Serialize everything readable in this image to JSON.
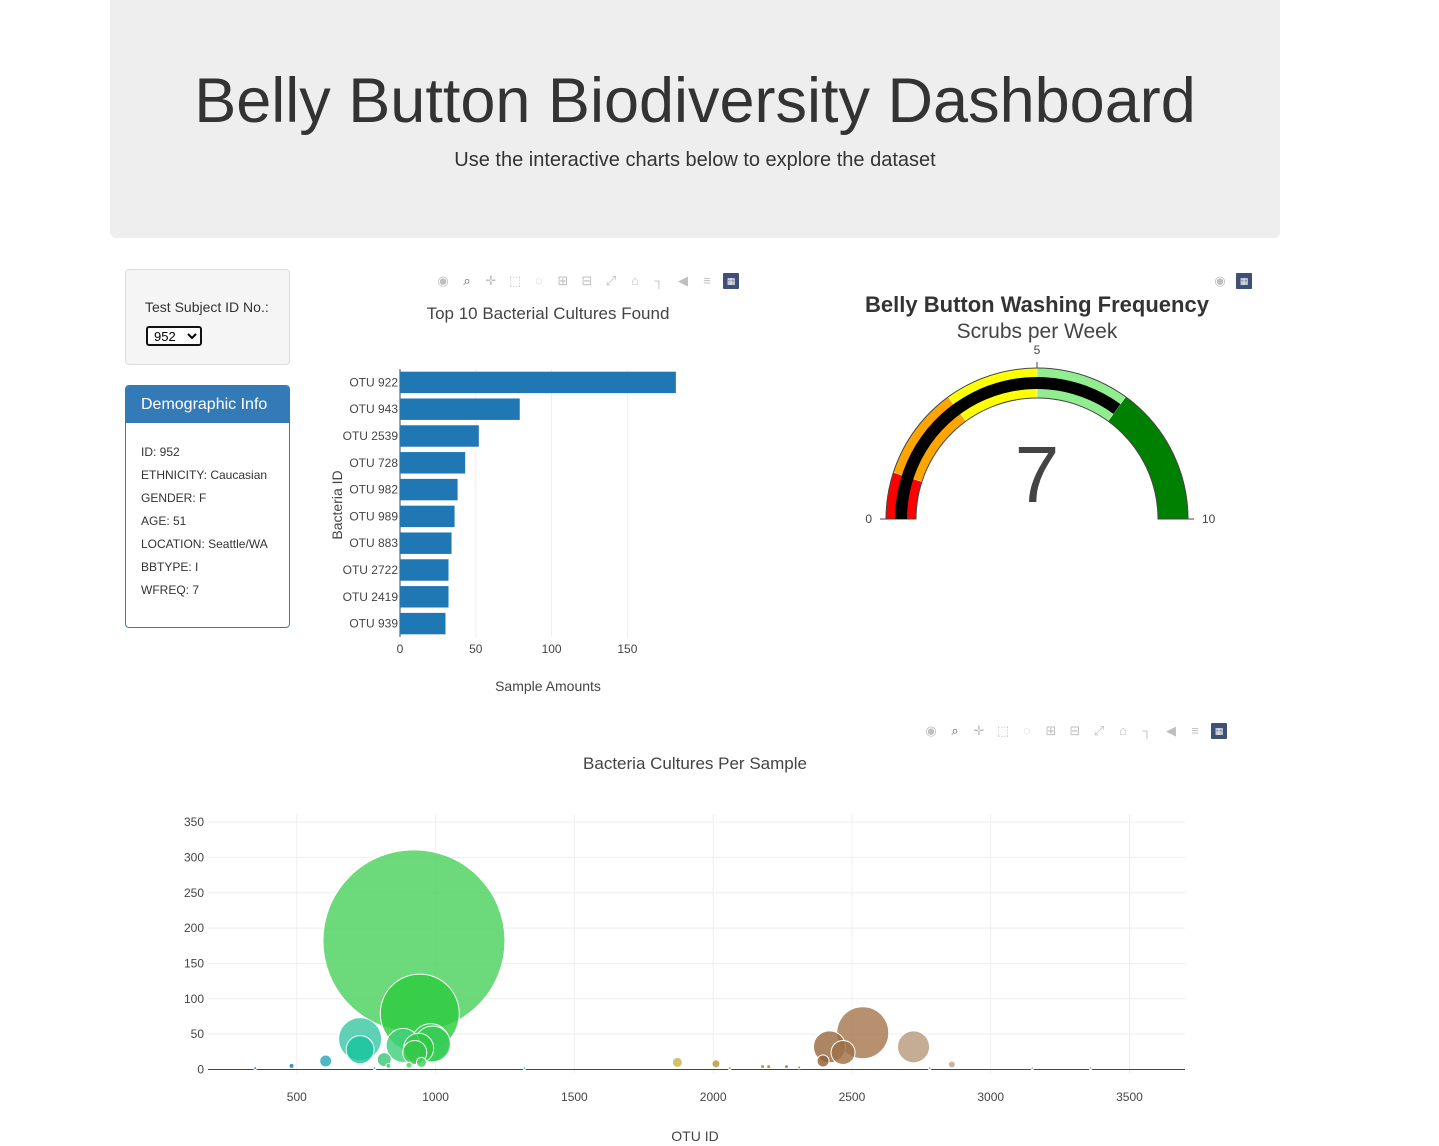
{
  "header": {
    "title": "Belly Button Biodiversity Dashboard",
    "subtitle": "Use the interactive charts below to explore the dataset"
  },
  "selector": {
    "label": "Test Subject ID No.:",
    "selected": "952"
  },
  "demographics": {
    "title": "Demographic Info",
    "rows": [
      "ID: 952",
      "ETHNICITY: Caucasian",
      "GENDER: F",
      "AGE: 51",
      "LOCATION: Seattle/WA",
      "BBTYPE: I",
      "WFREQ: 7"
    ]
  },
  "modebar_icons": [
    "camera-icon",
    "zoom-icon",
    "pan-icon",
    "box-select-icon",
    "lasso-icon",
    "zoom-in-icon",
    "zoom-out-icon",
    "autoscale-icon",
    "reset-axes-icon",
    "spike-lines-icon",
    "hover-closest-icon",
    "hover-compare-icon",
    "plotly-logo-icon"
  ],
  "colors": {
    "bar": "#1f77b4",
    "accent": "#337ab7",
    "needle": "#000000"
  },
  "chart_data": [
    {
      "type": "bar",
      "orientation": "horizontal",
      "title": "Top 10 Bacterial Cultures Found",
      "xlabel": "Sample Amounts",
      "ylabel": "Bacteria ID",
      "categories": [
        "OTU 922",
        "OTU 943",
        "OTU 2539",
        "OTU 728",
        "OTU 982",
        "OTU 989",
        "OTU 883",
        "OTU 2722",
        "OTU 2419",
        "OTU 939"
      ],
      "values": [
        182,
        79,
        52,
        43,
        38,
        36,
        34,
        32,
        32,
        30
      ],
      "xlim": [
        0,
        190
      ],
      "xticks": [
        0,
        50,
        100,
        150
      ]
    },
    {
      "type": "gauge",
      "title": "Belly Button Washing Frequency",
      "subtitle": "Scrubs per Week",
      "value": 7,
      "range": [
        0,
        10
      ],
      "tick_labels": [
        "0",
        "5",
        "10"
      ],
      "steps": [
        {
          "range": [
            0,
            1
          ],
          "color": "#ff0000"
        },
        {
          "range": [
            1,
            3
          ],
          "color": "#ffa500"
        },
        {
          "range": [
            3,
            5
          ],
          "color": "#ffff00"
        },
        {
          "range": [
            5,
            7
          ],
          "color": "#90ee90"
        },
        {
          "range": [
            7,
            10
          ],
          "color": "#008000"
        }
      ],
      "bar_color": "#000000"
    },
    {
      "type": "scatter",
      "title": "Bacteria Cultures Per Sample",
      "xlabel": "OTU ID",
      "ylabel": "",
      "xlim": [
        180,
        3700
      ],
      "ylim": [
        -5,
        360
      ],
      "xticks": [
        500,
        1000,
        1500,
        2000,
        2500,
        3000,
        3500
      ],
      "yticks": [
        0,
        50,
        100,
        150,
        200,
        250,
        300,
        350
      ],
      "points": [
        {
          "x": 922,
          "y": 182,
          "size": 182,
          "color": "#4cd15e"
        },
        {
          "x": 943,
          "y": 79,
          "size": 79,
          "color": "#2ecc40"
        },
        {
          "x": 728,
          "y": 43,
          "size": 43,
          "color": "#3cc8a6"
        },
        {
          "x": 728,
          "y": 28,
          "size": 28,
          "color": "#18c49f"
        },
        {
          "x": 883,
          "y": 34,
          "size": 34,
          "color": "#40d07a"
        },
        {
          "x": 982,
          "y": 38,
          "size": 38,
          "color": "#38d060"
        },
        {
          "x": 989,
          "y": 36,
          "size": 36,
          "color": "#36cc55"
        },
        {
          "x": 939,
          "y": 30,
          "size": 30,
          "color": "#2ec845"
        },
        {
          "x": 925,
          "y": 24,
          "size": 24,
          "color": "#35c84b"
        },
        {
          "x": 2539,
          "y": 52,
          "size": 52,
          "color": "#a6784f"
        },
        {
          "x": 2722,
          "y": 32,
          "size": 32,
          "color": "#b89a7d"
        },
        {
          "x": 2419,
          "y": 32,
          "size": 32,
          "color": "#9a6a40"
        },
        {
          "x": 2468,
          "y": 24,
          "size": 24,
          "color": "#9e7048"
        },
        {
          "x": 2396,
          "y": 12,
          "size": 12,
          "color": "#8f6038"
        },
        {
          "x": 604,
          "y": 12,
          "size": 12,
          "color": "#2aa8b8"
        },
        {
          "x": 815,
          "y": 14,
          "size": 14,
          "color": "#3cc878"
        },
        {
          "x": 1871,
          "y": 10,
          "size": 10,
          "color": "#c8b44a"
        },
        {
          "x": 2010,
          "y": 8,
          "size": 8,
          "color": "#b8963a"
        },
        {
          "x": 2860,
          "y": 7,
          "size": 7,
          "color": "#b9a58a"
        },
        {
          "x": 481,
          "y": 5,
          "size": 5,
          "color": "#1f78b4"
        },
        {
          "x": 949,
          "y": 10,
          "size": 10,
          "color": "#42d060"
        },
        {
          "x": 904,
          "y": 6,
          "size": 6,
          "color": "#48d068"
        },
        {
          "x": 830,
          "y": 5,
          "size": 5,
          "color": "#40cc70"
        },
        {
          "x": 2178,
          "y": 4,
          "size": 4,
          "color": "#a8783a"
        },
        {
          "x": 2200,
          "y": 4,
          "size": 4,
          "color": "#a87838"
        },
        {
          "x": 2264,
          "y": 4,
          "size": 4,
          "color": "#a07030"
        },
        {
          "x": 2310,
          "y": 3,
          "size": 3,
          "color": "#a06e30"
        },
        {
          "x": 2060,
          "y": 2,
          "size": 2,
          "color": "#b89040"
        },
        {
          "x": 350,
          "y": 2,
          "size": 2,
          "color": "#2a70b8"
        },
        {
          "x": 1320,
          "y": 2,
          "size": 2,
          "color": "#60c8a0"
        },
        {
          "x": 3150,
          "y": 2,
          "size": 2,
          "color": "#c0b090"
        },
        {
          "x": 3360,
          "y": 2,
          "size": 2,
          "color": "#c0b090"
        },
        {
          "x": 780,
          "y": 2,
          "size": 2,
          "color": "#30c890"
        },
        {
          "x": 2780,
          "y": 2,
          "size": 2,
          "color": "#b8a080"
        }
      ]
    }
  ]
}
